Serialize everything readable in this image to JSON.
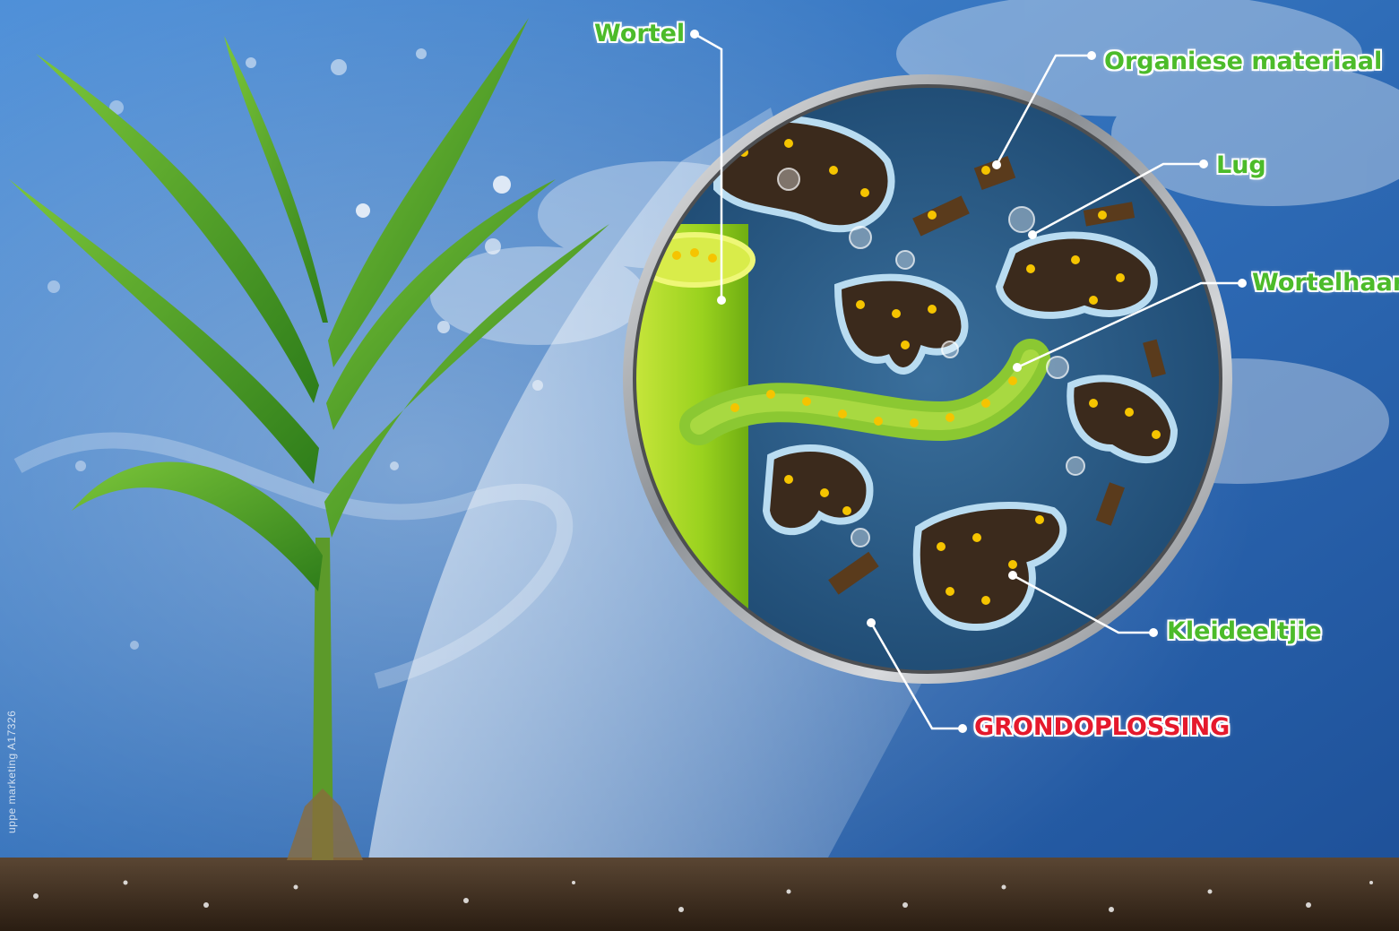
{
  "labels": {
    "wortel": "Wortel",
    "organiese_materiaal": "Organiese materiaal",
    "lug": "Lug",
    "wortelhaar": "Wortelhaar",
    "kleideeltjie": "Kleideeltjie",
    "grondoplossing": "GRONDOPLOSSING"
  },
  "credit": "uppe marketing A17326",
  "colors": {
    "label_green": "#4cbb2a",
    "label_red": "#e5192c",
    "sky_blue": "#2f6db8",
    "soil_brown": "#3b2a1c",
    "nutrient_yellow": "#f5c400"
  }
}
